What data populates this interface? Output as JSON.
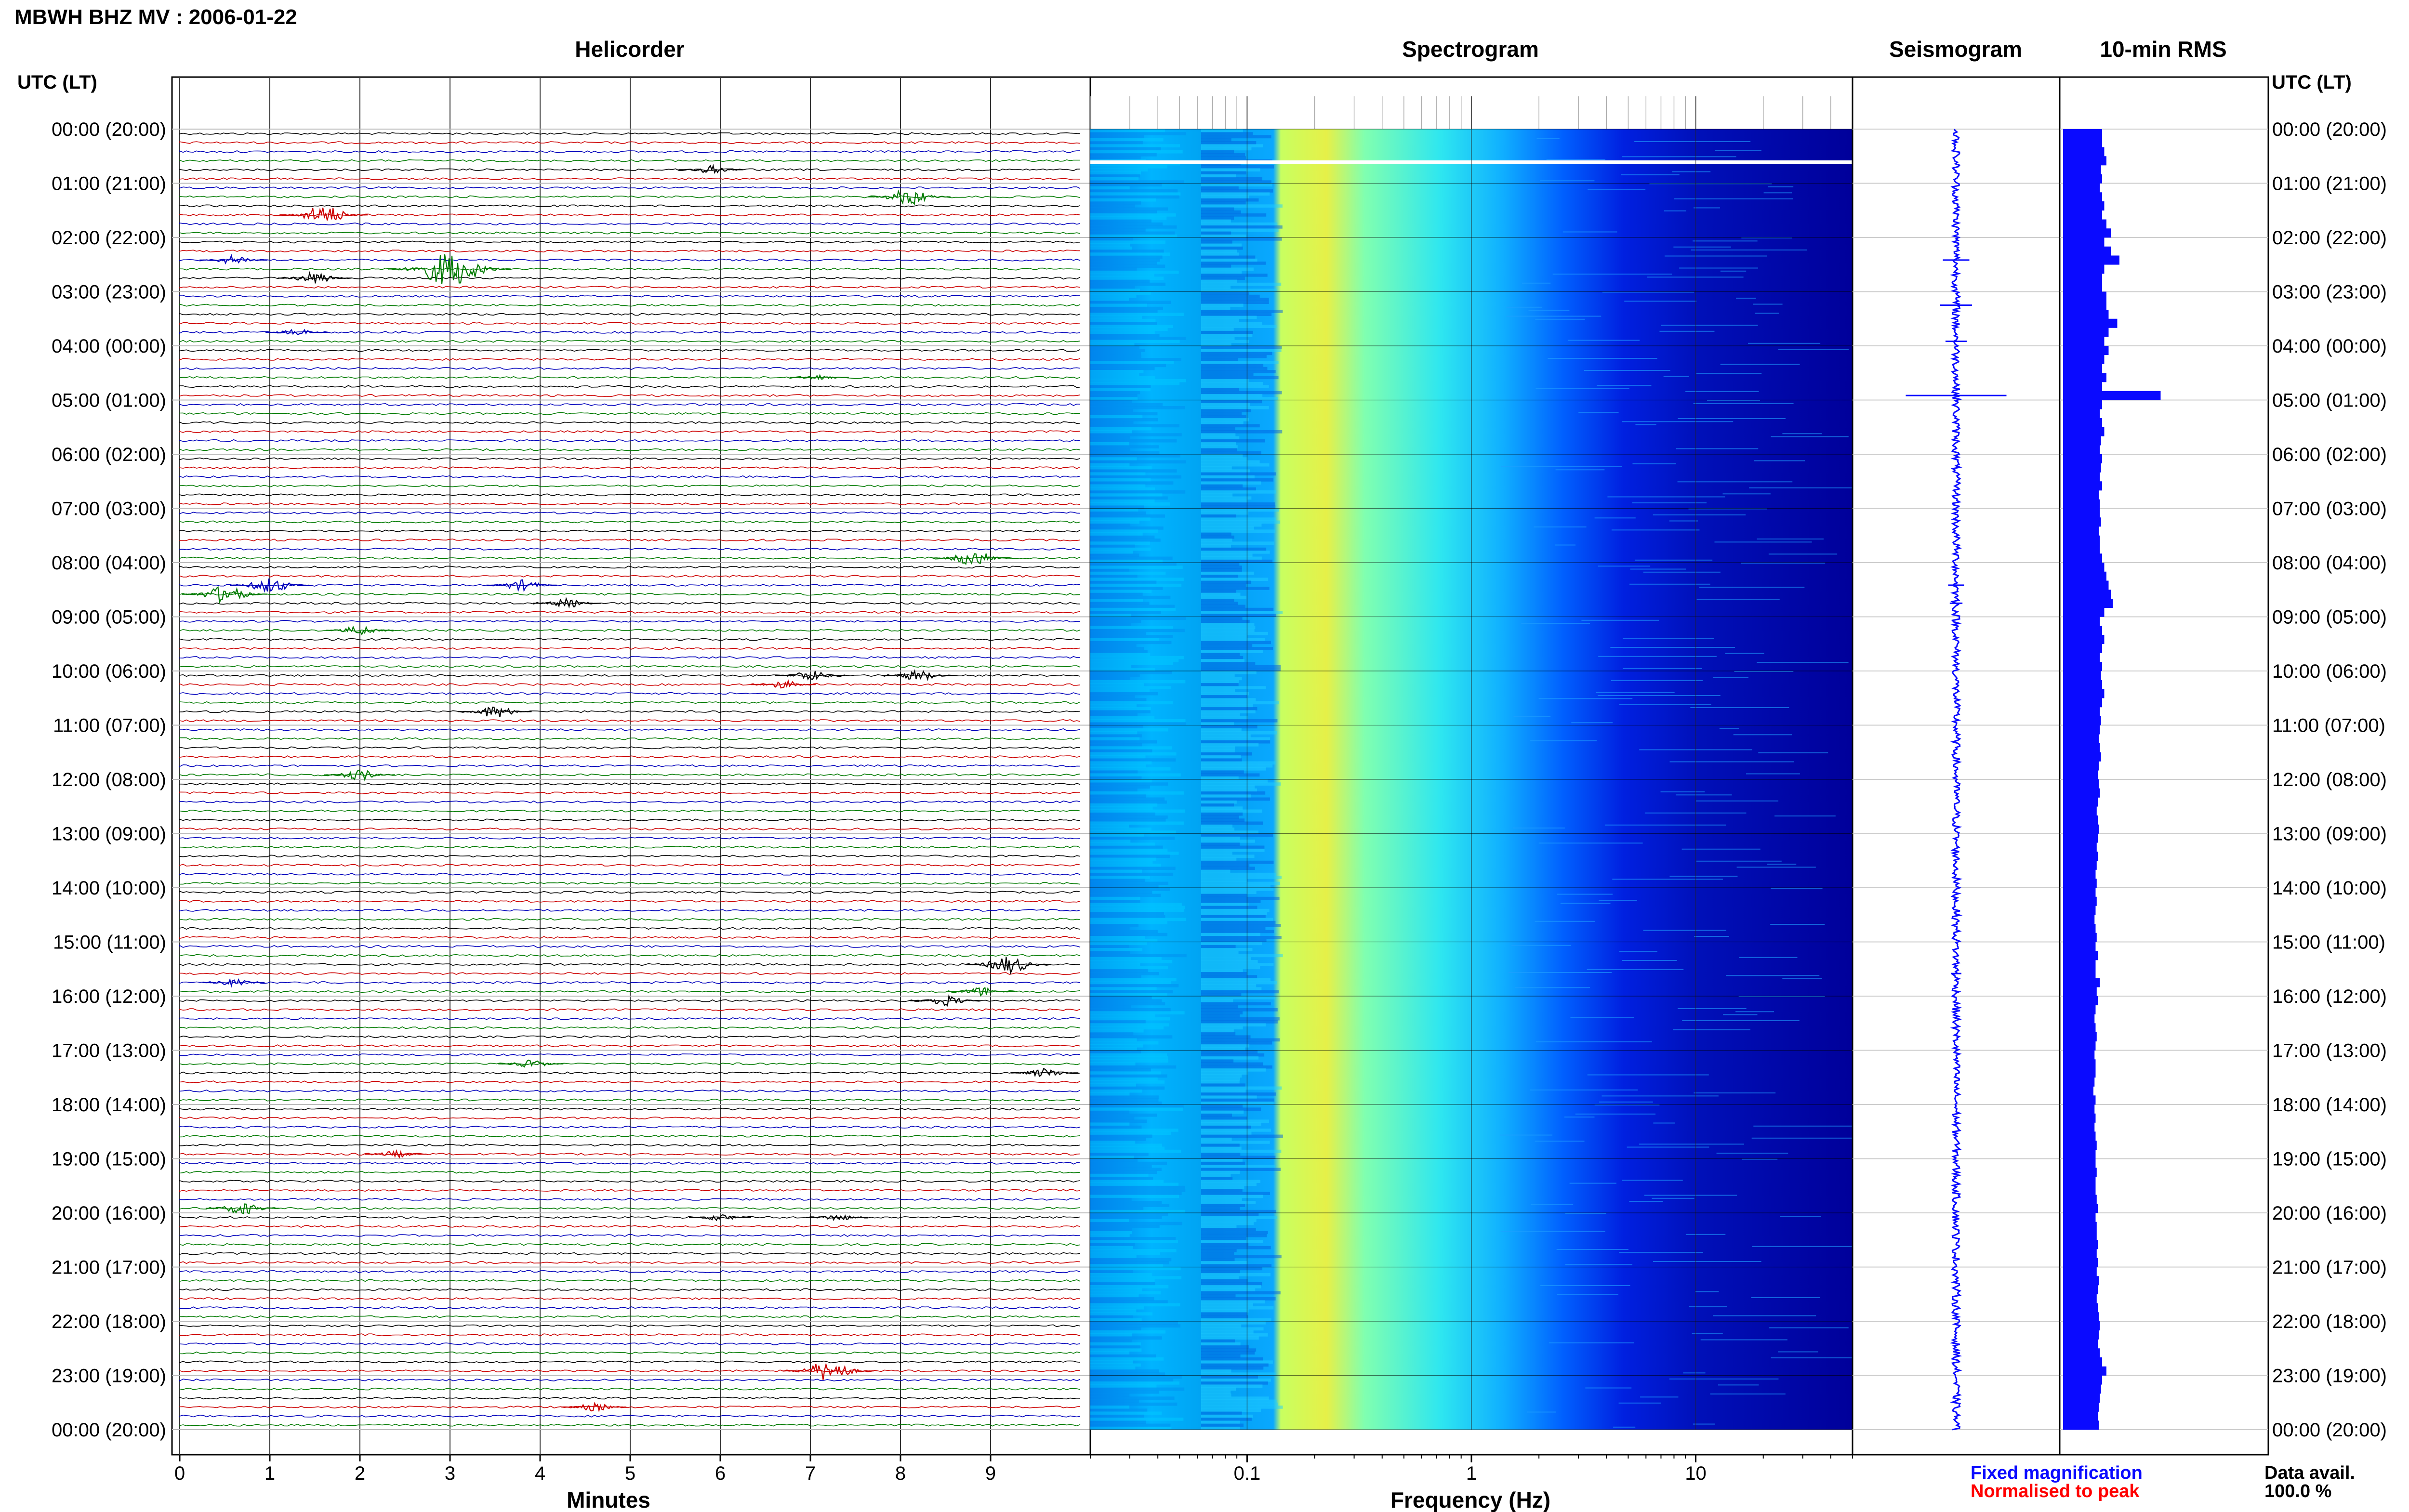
{
  "header": {
    "title": "MBWH BHZ MV : 2006-01-22"
  },
  "panels": {
    "helicorder": "Helicorder",
    "spectrogram": "Spectrogram",
    "seismogram": "Seismogram",
    "rms": "10-min RMS"
  },
  "axes": {
    "time_header_left": "UTC (LT)",
    "time_header_right": "UTC (LT)",
    "helicorder_xlabel": "Minutes",
    "spectrogram_xlabel": "Frequency (Hz)"
  },
  "legend": {
    "fixed": "Fixed magnification",
    "normalised": "Normalised to peak",
    "fixed_color": "#0a0aff",
    "normalised_color": "#ff0000"
  },
  "data_availability": {
    "label": "Data avail.",
    "value": "100.0 %"
  },
  "chart_data": [
    {
      "type": "line",
      "name": "Helicorder",
      "xlabel": "Minutes",
      "xlim": [
        0,
        10
      ],
      "x_ticks": [
        "0",
        "1",
        "2",
        "3",
        "4",
        "5",
        "6",
        "7",
        "8",
        "9"
      ],
      "rows_per_hour": 6,
      "hours": 24,
      "trace_colors": [
        "#000000",
        "#cc0000",
        "#0000bb",
        "#007a00"
      ],
      "time_labels": [
        "00:00 (20:00)",
        "01:00 (21:00)",
        "02:00 (22:00)",
        "03:00 (23:00)",
        "04:00 (00:00)",
        "05:00 (01:00)",
        "06:00 (02:00)",
        "07:00 (03:00)",
        "08:00 (04:00)",
        "09:00 (05:00)",
        "10:00 (06:00)",
        "11:00 (07:00)",
        "12:00 (08:00)",
        "13:00 (09:00)",
        "14:00 (10:00)",
        "15:00 (11:00)",
        "16:00 (12:00)",
        "17:00 (13:00)",
        "18:00 (14:00)",
        "19:00 (15:00)",
        "20:00 (16:00)",
        "21:00 (17:00)",
        "22:00 (18:00)",
        "23:00 (19:00)",
        "00:00 (20:00)"
      ],
      "events": [
        {
          "row": 4,
          "minute": 5.9,
          "amp": 0.6
        },
        {
          "row": 7,
          "minute": 8.1,
          "amp": 1.2
        },
        {
          "row": 9,
          "minute": 1.6,
          "amp": 1.4
        },
        {
          "row": 14,
          "minute": 0.6,
          "amp": 0.7
        },
        {
          "row": 15,
          "minute": 3.0,
          "amp": 2.6
        },
        {
          "row": 16,
          "minute": 1.5,
          "amp": 0.9
        },
        {
          "row": 22,
          "minute": 1.3,
          "amp": 0.5
        },
        {
          "row": 27,
          "minute": 7.1,
          "amp": 0.4
        },
        {
          "row": 47,
          "minute": 8.8,
          "amp": 1.1
        },
        {
          "row": 50,
          "minute": 1.0,
          "amp": 1.1
        },
        {
          "row": 51,
          "minute": 0.5,
          "amp": 1.3
        },
        {
          "row": 50,
          "minute": 3.8,
          "amp": 0.8
        },
        {
          "row": 52,
          "minute": 4.3,
          "amp": 0.7
        },
        {
          "row": 55,
          "minute": 2.0,
          "amp": 0.7
        },
        {
          "row": 60,
          "minute": 7.0,
          "amp": 0.8
        },
        {
          "row": 60,
          "minute": 8.2,
          "amp": 0.8
        },
        {
          "row": 61,
          "minute": 6.7,
          "amp": 0.6
        },
        {
          "row": 64,
          "minute": 3.5,
          "amp": 0.9
        },
        {
          "row": 71,
          "minute": 2.0,
          "amp": 0.8
        },
        {
          "row": 92,
          "minute": 9.2,
          "amp": 1.3
        },
        {
          "row": 94,
          "minute": 0.6,
          "amp": 0.5
        },
        {
          "row": 95,
          "minute": 8.9,
          "amp": 0.7
        },
        {
          "row": 96,
          "minute": 8.5,
          "amp": 0.8
        },
        {
          "row": 103,
          "minute": 3.9,
          "amp": 0.6
        },
        {
          "row": 104,
          "minute": 9.6,
          "amp": 0.7
        },
        {
          "row": 113,
          "minute": 2.4,
          "amp": 0.5
        },
        {
          "row": 119,
          "minute": 0.7,
          "amp": 0.9
        },
        {
          "row": 120,
          "minute": 6.0,
          "amp": 0.5
        },
        {
          "row": 120,
          "minute": 7.3,
          "amp": 0.5
        },
        {
          "row": 137,
          "minute": 7.2,
          "amp": 1.5
        },
        {
          "row": 141,
          "minute": 4.6,
          "amp": 0.6
        }
      ]
    },
    {
      "type": "heatmap",
      "name": "Spectrogram",
      "xlabel": "Frequency (Hz)",
      "x_scale": "log",
      "xlim": [
        0.02,
        50
      ],
      "x_ticks": [
        0.1,
        1,
        10
      ],
      "x_tick_labels": [
        "0.1",
        "1",
        "10"
      ],
      "rows": 144,
      "colormap": [
        "#00007f",
        "#0000ff",
        "#0080ff",
        "#00ffff",
        "#80ff80",
        "#ffff00"
      ],
      "peak_frequency_hz": 0.22
    },
    {
      "type": "line",
      "name": "Seismogram",
      "rows": 144,
      "color": "#0a0aff",
      "spikes": [
        {
          "row": 14,
          "amp": 0.25
        },
        {
          "row": 19,
          "amp": 0.3
        },
        {
          "row": 23,
          "amp": 0.2
        },
        {
          "row": 29,
          "amp": 0.95
        },
        {
          "row": 50,
          "amp": 0.15
        },
        {
          "row": 52,
          "amp": 0.12
        },
        {
          "row": 93,
          "amp": 0.1
        }
      ]
    },
    {
      "type": "bar",
      "name": "10-min RMS",
      "orientation": "horizontal",
      "color": "#0a0aff",
      "bins": 144,
      "values": [
        0.36,
        0.36,
        0.38,
        0.4,
        0.35,
        0.36,
        0.34,
        0.36,
        0.38,
        0.36,
        0.4,
        0.44,
        0.38,
        0.44,
        0.52,
        0.38,
        0.36,
        0.36,
        0.4,
        0.4,
        0.42,
        0.5,
        0.42,
        0.38,
        0.42,
        0.38,
        0.36,
        0.4,
        0.36,
        0.9,
        0.36,
        0.34,
        0.36,
        0.38,
        0.35,
        0.34,
        0.36,
        0.35,
        0.34,
        0.36,
        0.33,
        0.34,
        0.34,
        0.35,
        0.33,
        0.34,
        0.34,
        0.36,
        0.38,
        0.4,
        0.42,
        0.44,
        0.46,
        0.38,
        0.34,
        0.36,
        0.38,
        0.36,
        0.34,
        0.36,
        0.35,
        0.36,
        0.38,
        0.36,
        0.34,
        0.35,
        0.34,
        0.33,
        0.34,
        0.35,
        0.33,
        0.32,
        0.33,
        0.34,
        0.32,
        0.31,
        0.32,
        0.33,
        0.32,
        0.31,
        0.32,
        0.31,
        0.3,
        0.31,
        0.3,
        0.31,
        0.3,
        0.29,
        0.3,
        0.31,
        0.3,
        0.32,
        0.3,
        0.3,
        0.34,
        0.31,
        0.32,
        0.3,
        0.29,
        0.3,
        0.31,
        0.3,
        0.29,
        0.3,
        0.3,
        0.29,
        0.28,
        0.3,
        0.29,
        0.3,
        0.29,
        0.3,
        0.31,
        0.3,
        0.3,
        0.31,
        0.3,
        0.3,
        0.31,
        0.32,
        0.3,
        0.31,
        0.31,
        0.32,
        0.31,
        0.32,
        0.31,
        0.33,
        0.32,
        0.31,
        0.32,
        0.33,
        0.34,
        0.33,
        0.32,
        0.34,
        0.36,
        0.4,
        0.36,
        0.35,
        0.34,
        0.33,
        0.32,
        0.33
      ]
    }
  ]
}
